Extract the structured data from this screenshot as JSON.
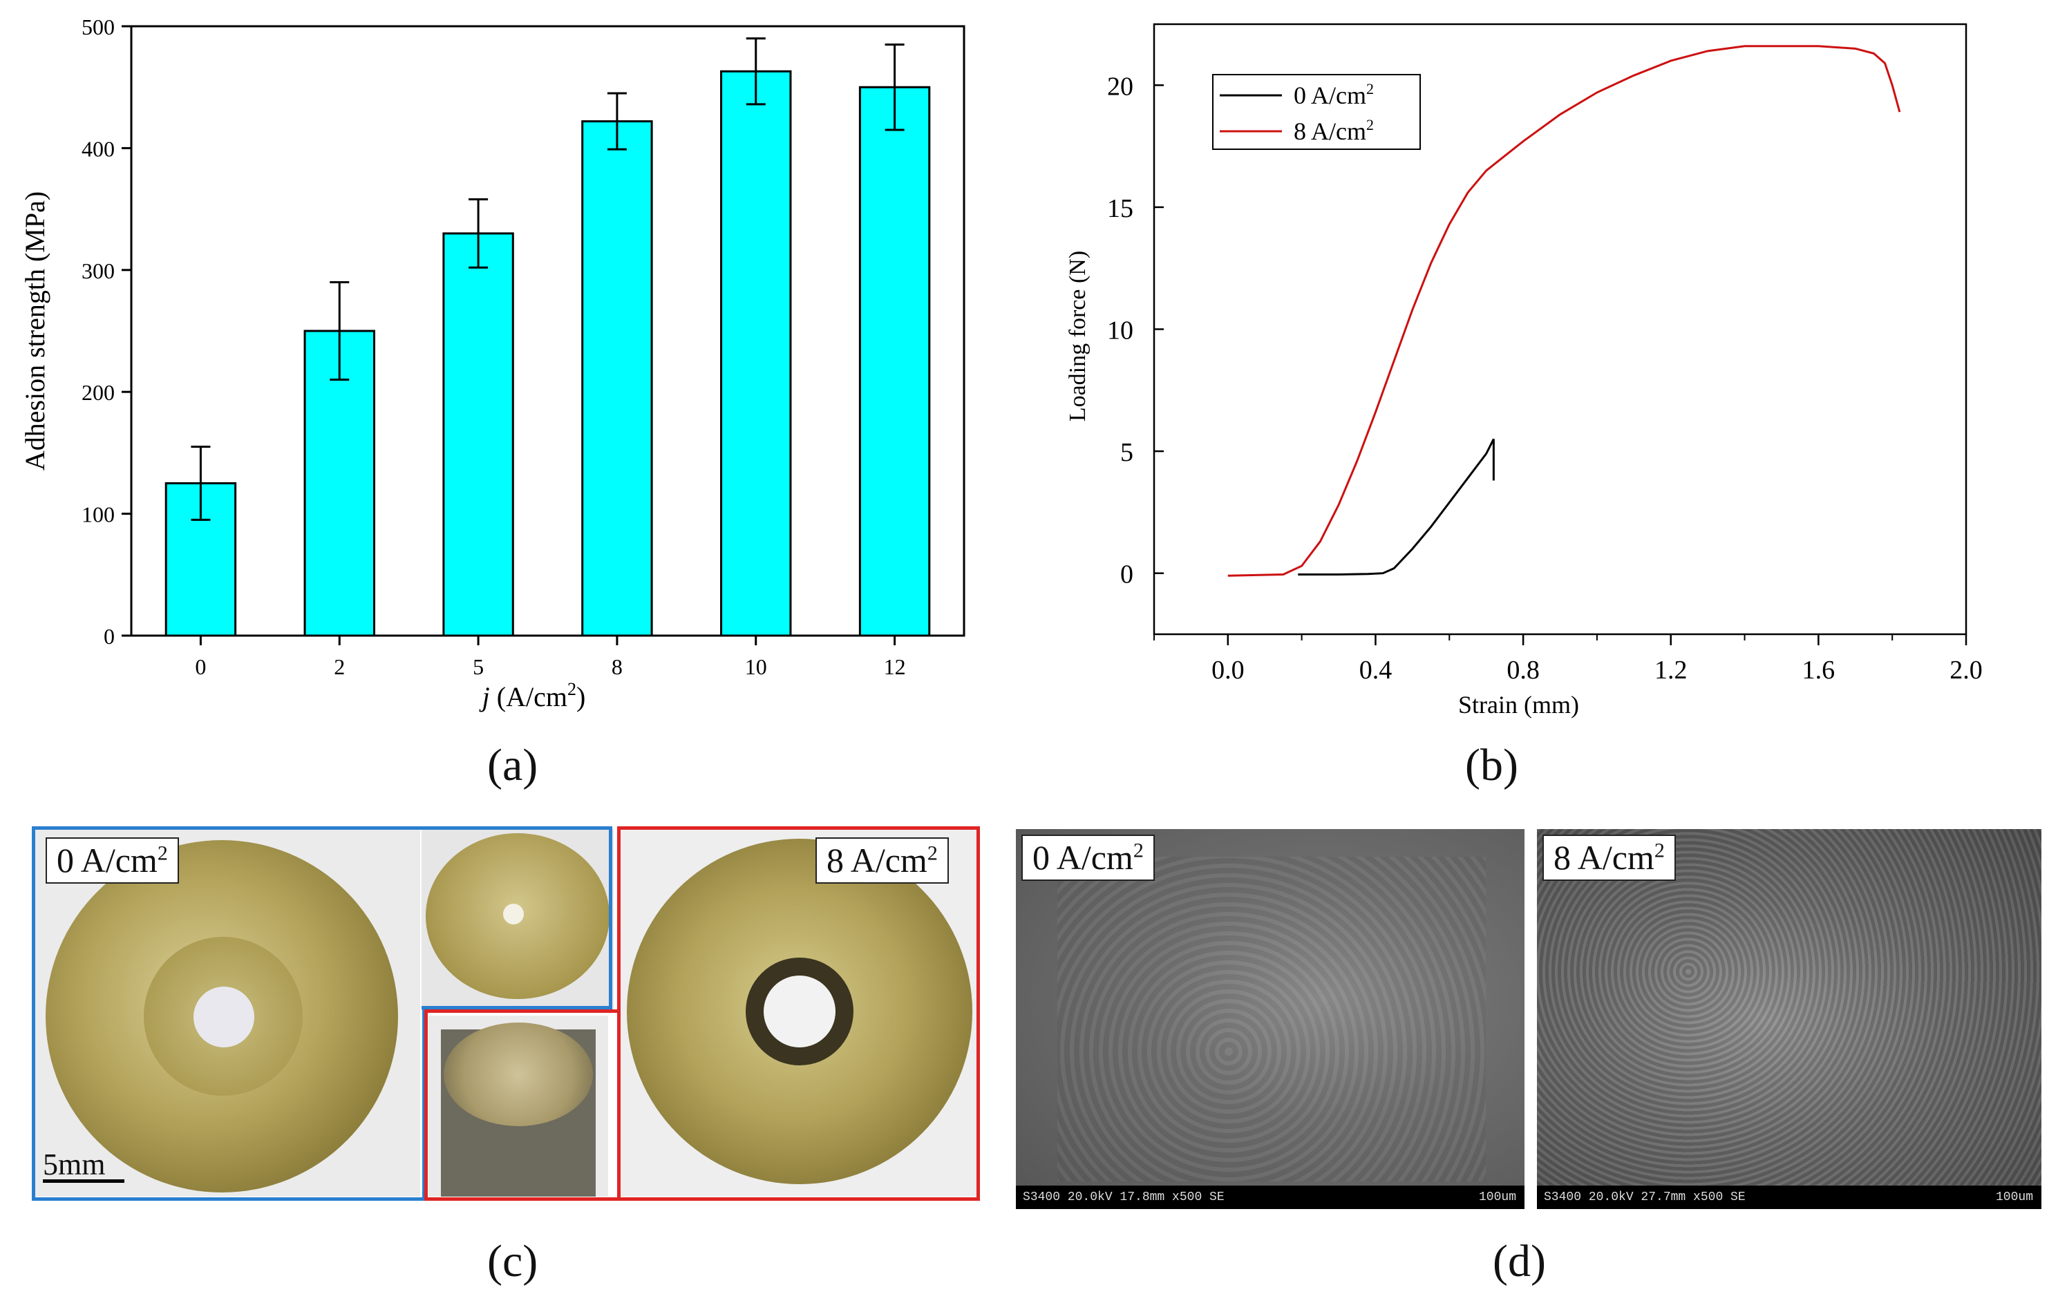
{
  "chart_data": [
    {
      "type": "bar",
      "panel": "(a)",
      "categories": [
        "0",
        "2",
        "5",
        "8",
        "10",
        "12"
      ],
      "values": [
        125,
        250,
        330,
        422,
        463,
        450
      ],
      "errors": [
        30,
        40,
        28,
        23,
        27,
        35
      ],
      "ylabel": "Adhesion strength (MPa)",
      "xlabel_italic": "j",
      "xlabel_rest": " (A/cm",
      "xlabel_sup": "2",
      "xlabel_close": ")",
      "ylim": [
        0,
        500
      ],
      "yticks": [
        "0",
        "100",
        "200",
        "300",
        "400",
        "500"
      ],
      "color": "#00ffff"
    },
    {
      "type": "line",
      "panel": "(b)",
      "xlabel": "Strain (mm)",
      "ylabel": "Loading force (N)",
      "xlim": [
        -0.2,
        2.0
      ],
      "ylim": [
        -2.5,
        22.5
      ],
      "xticks": [
        "0.0",
        "0.4",
        "0.8",
        "1.2",
        "1.6",
        "2.0"
      ],
      "yticks": [
        "0",
        "5",
        "10",
        "15",
        "20"
      ],
      "series": [
        {
          "name": "0 A/cm",
          "sup": "2",
          "color": "#000000",
          "x": [
            0.19,
            0.3,
            0.38,
            0.42,
            0.45,
            0.5,
            0.55,
            0.6,
            0.65,
            0.7,
            0.72,
            0.72
          ],
          "y": [
            -0.05,
            -0.05,
            -0.03,
            0.0,
            0.2,
            1.0,
            1.9,
            2.9,
            3.9,
            4.9,
            5.5,
            3.8
          ]
        },
        {
          "name": "8 A/cm",
          "sup": "2",
          "color": "#cc1111",
          "x": [
            0.0,
            0.15,
            0.2,
            0.25,
            0.3,
            0.35,
            0.4,
            0.45,
            0.5,
            0.55,
            0.6,
            0.65,
            0.7,
            0.75,
            0.8,
            0.9,
            1.0,
            1.1,
            1.2,
            1.3,
            1.4,
            1.5,
            1.6,
            1.7,
            1.75,
            1.78,
            1.8,
            1.82
          ],
          "y": [
            -0.1,
            -0.05,
            0.3,
            1.3,
            2.8,
            4.6,
            6.6,
            8.7,
            10.8,
            12.7,
            14.3,
            15.6,
            16.5,
            17.1,
            17.7,
            18.8,
            19.7,
            20.4,
            21.0,
            21.4,
            21.6,
            21.6,
            21.6,
            21.5,
            21.3,
            20.9,
            20.0,
            18.9
          ]
        }
      ]
    }
  ],
  "captions": {
    "a": "(a)",
    "b": "(b)",
    "c": "(c)",
    "d": "(d)"
  },
  "photos": {
    "label_0": "0 A/cm",
    "label_8": "8 A/cm",
    "sup": "2",
    "scale": "5mm"
  },
  "sem": {
    "label_0": "0 A/cm",
    "label_8": "8 A/cm",
    "sup": "2",
    "info_left": "S3400 20.0kV 17.8mm x500 SE",
    "info_right": "S3400 20.0kV 27.7mm x500 SE",
    "scale": "100um"
  }
}
